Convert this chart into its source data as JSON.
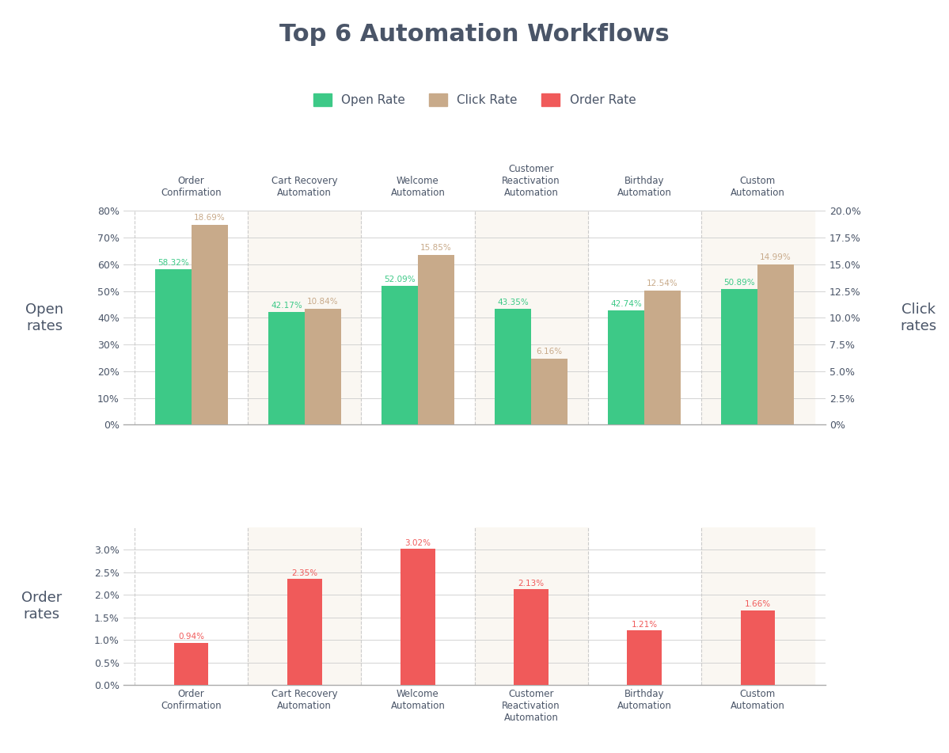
{
  "title": "Top 6 Automation Workflows",
  "categories": [
    "Order\nConfirmation",
    "Cart Recovery\nAutomation",
    "Welcome\nAutomation",
    "Customer\nReactivation\nAutomation",
    "Birthday\nAutomation",
    "Custom\nAutomation"
  ],
  "open_rates": [
    58.32,
    42.17,
    52.09,
    43.35,
    42.74,
    50.89
  ],
  "click_rates": [
    18.69,
    10.84,
    15.85,
    6.16,
    12.54,
    14.99
  ],
  "order_rates": [
    0.94,
    2.35,
    3.02,
    2.13,
    1.21,
    1.66
  ],
  "open_rate_labels": [
    "58.32%",
    "42.17%",
    "52.09%",
    "43.35%",
    "42.74%",
    "50.89%"
  ],
  "click_rate_labels": [
    "18.69%",
    "10.84%",
    "15.85%",
    "6.16%",
    "12.54%",
    "14.99%"
  ],
  "order_rate_labels": [
    "0.94%",
    "2.35%",
    "3.02%",
    "2.13%",
    "1.21%",
    "1.66%"
  ],
  "open_color": "#3DC987",
  "click_color": "#C8AA8A",
  "order_color": "#F05A5A",
  "bg_color": "#FFFFFF",
  "shaded_bg": "#FAF7F2",
  "ylabel_open": "Open\nrates",
  "ylabel_click": "Click\nrates",
  "ylabel_order": "Order\nrates",
  "legend_labels": [
    "Open Rate",
    "Click Rate",
    "Order Rate"
  ],
  "open_ylim": [
    0,
    80
  ],
  "click_ylim": [
    0,
    20
  ],
  "order_ylim": [
    0,
    3.5
  ],
  "open_yticks": [
    0,
    10,
    20,
    30,
    40,
    50,
    60,
    70,
    80
  ],
  "click_yticks": [
    0,
    2.5,
    5.0,
    7.5,
    10.0,
    12.5,
    15.0,
    17.5,
    20.0
  ],
  "order_yticks": [
    0.0,
    0.5,
    1.0,
    1.5,
    2.0,
    2.5,
    3.0
  ],
  "text_color": "#4A5568",
  "axis_color": "#CCCCCC",
  "shaded_cols": [
    1,
    3,
    5
  ]
}
